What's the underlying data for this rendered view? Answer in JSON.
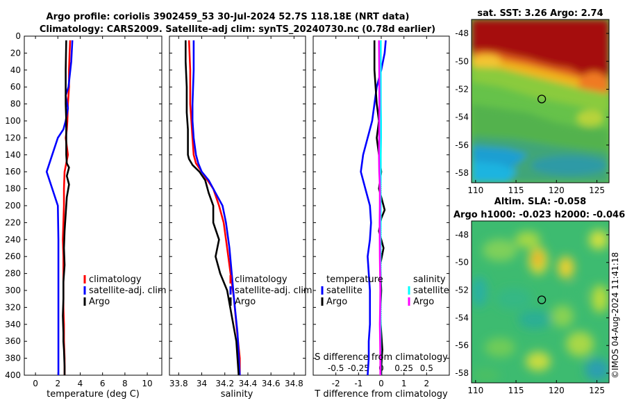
{
  "title_line1": "Argo profile: coriolis 3902459_53 30-Jul-2024 52.7S 118.18E (NRT data)",
  "title_line2": "Climatology: CARS2009. Satellite-adj clim: synTS_20240730.nc (0.78d earlier)",
  "credit": "©IMOS 04-Aug-2024 11:41:18",
  "colors": {
    "climatology": "#ff0000",
    "satellite_clim": "#0000ff",
    "argo": "#000000",
    "sal_sat": "#00ffff",
    "sal_argo": "#ff00ff"
  },
  "chart_data": [
    {
      "type": "line",
      "id": "temperature",
      "xlabel": "temperature (deg C)",
      "xlim": [
        -1,
        11.3
      ],
      "ylim": [
        0,
        400
      ],
      "y_reversed": true,
      "xticks": [
        0,
        2,
        4,
        6,
        8,
        10
      ],
      "yticks": [
        0,
        20,
        40,
        60,
        80,
        100,
        120,
        140,
        160,
        180,
        200,
        220,
        240,
        260,
        280,
        300,
        320,
        340,
        360,
        380,
        400
      ],
      "legend": [
        "climatology",
        "satellite-adj. clim",
        "Argo"
      ],
      "series": [
        {
          "name": "climatology",
          "color": "#ff0000",
          "x": [
            3.1,
            3.05,
            3.0,
            3.0,
            2.9,
            2.85,
            2.8,
            2.7,
            2.8,
            2.9,
            2.75,
            2.6,
            2.55,
            2.55,
            2.5,
            2.45,
            2.5,
            2.5,
            2.5,
            2.5,
            2.55,
            2.55,
            2.6,
            2.6
          ],
          "y": [
            5,
            20,
            40,
            60,
            80,
            100,
            110,
            120,
            130,
            140,
            150,
            160,
            180,
            200,
            220,
            240,
            260,
            280,
            300,
            320,
            340,
            360,
            380,
            400
          ]
        },
        {
          "name": "satellite-adj. clim",
          "color": "#0000ff",
          "x": [
            3.3,
            3.2,
            2.95,
            2.7,
            2.9,
            2.7,
            2.5,
            2.0,
            1.5,
            1.0,
            2.0,
            2.05,
            2.05,
            2.05,
            2.05,
            2.05,
            2.05
          ],
          "y": [
            5,
            30,
            60,
            70,
            85,
            100,
            110,
            120,
            140,
            160,
            200,
            240,
            280,
            320,
            350,
            380,
            400
          ]
        },
        {
          "name": "Argo",
          "color": "#000000",
          "x": [
            2.75,
            2.7,
            2.7,
            2.75,
            2.75,
            2.75,
            2.8,
            3.0,
            2.8,
            3.0,
            2.8,
            2.7,
            2.6,
            2.55,
            2.6,
            2.5,
            2.5,
            2.45,
            2.5,
            2.5,
            2.55,
            2.6,
            2.6
          ],
          "y": [
            5,
            40,
            80,
            100,
            120,
            140,
            150,
            155,
            165,
            175,
            190,
            210,
            230,
            250,
            270,
            290,
            310,
            330,
            350,
            360,
            370,
            390,
            400
          ]
        }
      ]
    },
    {
      "type": "line",
      "id": "salinity",
      "xlabel": "salinity",
      "xlim": [
        33.72,
        34.9
      ],
      "ylim": [
        0,
        400
      ],
      "y_reversed": true,
      "xticks": [
        33.8,
        34,
        34.2,
        34.4,
        34.6,
        34.8
      ],
      "xticklabels": [
        "33.8",
        "34",
        "34.2",
        "34.4",
        "34.6",
        "34.8"
      ],
      "legend": [
        "climatology",
        "satellite-adj. clim",
        "Argo"
      ],
      "series": [
        {
          "name": "climatology",
          "color": "#ff0000",
          "x": [
            33.89,
            33.9,
            33.9,
            33.91,
            33.92,
            33.93,
            33.95,
            34.0,
            34.05,
            34.1,
            34.15,
            34.19,
            34.22,
            34.25,
            34.28,
            34.3,
            34.33,
            34.33
          ],
          "y": [
            5,
            40,
            80,
            100,
            120,
            140,
            150,
            160,
            170,
            180,
            200,
            220,
            250,
            280,
            310,
            340,
            380,
            400
          ]
        },
        {
          "name": "satellite-adj. clim",
          "color": "#0000ff",
          "x": [
            33.93,
            33.93,
            33.92,
            33.92,
            33.93,
            33.95,
            33.97,
            34.0,
            34.06,
            34.12,
            34.18,
            34.21,
            34.24,
            34.26,
            34.28,
            34.31,
            34.33
          ],
          "y": [
            5,
            40,
            80,
            100,
            120,
            140,
            150,
            160,
            170,
            185,
            200,
            220,
            250,
            280,
            310,
            350,
            400
          ]
        },
        {
          "name": "Argo",
          "color": "#000000",
          "x": [
            33.86,
            33.86,
            33.87,
            33.87,
            33.88,
            33.88,
            33.88,
            33.89,
            33.92,
            33.98,
            34.03,
            34.06,
            34.1,
            34.1,
            34.15,
            34.12,
            34.16,
            34.22,
            34.26,
            34.3,
            34.31,
            34.32
          ],
          "y": [
            5,
            30,
            60,
            90,
            110,
            130,
            140,
            145,
            152,
            160,
            170,
            185,
            200,
            220,
            240,
            260,
            280,
            300,
            330,
            360,
            380,
            400
          ]
        }
      ]
    },
    {
      "type": "line",
      "id": "difference",
      "xlabel": "T difference from climatology",
      "xlabel_top": "S difference from climatology",
      "xlim": [
        -3,
        3
      ],
      "ylim": [
        0,
        400
      ],
      "y_reversed": true,
      "xticks": [
        -2,
        -1,
        0,
        1,
        2
      ],
      "xticks_top": [
        -0.5,
        -0.25,
        0,
        0.25,
        0.5
      ],
      "xticklabels_top": [
        "-0.5",
        "-0.25",
        "0",
        "0.25",
        "0.5"
      ],
      "legend_temperature": {
        "heading": "temperature",
        "items": [
          "satellite",
          "Argo"
        ]
      },
      "legend_salinity": {
        "heading": "salinity",
        "items": [
          "satellite",
          "Argo"
        ]
      },
      "series": [
        {
          "name": "temperature satellite",
          "color": "#0000ff",
          "x": [
            0.2,
            0.15,
            0.0,
            -0.2,
            -0.3,
            -0.4,
            -0.6,
            -0.8,
            -0.9,
            -0.7,
            -0.5,
            -0.45,
            -0.5,
            -0.6,
            -0.55,
            -0.5,
            -0.5,
            -0.5,
            -0.55,
            -0.55,
            -0.6
          ],
          "y": [
            5,
            20,
            40,
            60,
            80,
            100,
            120,
            140,
            160,
            180,
            200,
            220,
            240,
            260,
            280,
            300,
            320,
            340,
            360,
            380,
            400
          ]
        },
        {
          "name": "temperature Argo",
          "color": "#000000",
          "x": [
            -0.3,
            -0.3,
            -0.2,
            -0.1,
            -0.2,
            -0.1,
            0.0,
            -0.1,
            0.1,
            0.15,
            0.0,
            -0.1,
            0.1,
            -0.05,
            0.0,
            -0.05,
            0.0,
            0.05,
            0.0,
            0.0
          ],
          "y": [
            5,
            40,
            80,
            100,
            120,
            140,
            160,
            180,
            200,
            205,
            215,
            230,
            250,
            270,
            300,
            330,
            350,
            370,
            390,
            400
          ]
        },
        {
          "name": "salinity satellite",
          "color": "#00ffff",
          "x": [
            -0.02,
            -0.02,
            -0.02,
            -0.01,
            -0.01,
            -0.02,
            -0.02,
            -0.03,
            -0.02,
            -0.03,
            -0.03,
            -0.03,
            -0.03,
            -0.03,
            -0.03
          ],
          "y": [
            5,
            40,
            80,
            100,
            120,
            140,
            160,
            180,
            200,
            240,
            280,
            320,
            360,
            380,
            400
          ]
        },
        {
          "name": "salinity Argo",
          "color": "#ff00ff",
          "x": [
            -0.1,
            -0.09,
            -0.08,
            -0.09,
            -0.09,
            -0.1,
            -0.09,
            -0.07,
            -0.06,
            -0.06,
            -0.07,
            -0.06,
            -0.04,
            -0.05,
            -0.06,
            -0.05,
            -0.04,
            -0.04
          ],
          "y": [
            5,
            40,
            80,
            100,
            120,
            140,
            160,
            170,
            180,
            200,
            220,
            260,
            300,
            320,
            340,
            360,
            380,
            400
          ]
        }
      ]
    },
    {
      "type": "heatmap",
      "id": "sst_map",
      "title": "sat. SST: 3.26 Argo: 2.74",
      "xlim": [
        109.5,
        126.5
      ],
      "ylim": [
        -58.7,
        -47
      ],
      "xticks": [
        110,
        115,
        120,
        125
      ],
      "yticks": [
        -48,
        -50,
        -52,
        -54,
        -56,
        -58
      ],
      "marker": {
        "lon": 118.18,
        "lat": -52.7
      }
    },
    {
      "type": "heatmap",
      "id": "sla_map",
      "title_line1": "Altim. SLA: -0.058",
      "title_line2": "Argo h1000: -0.023 h2000: -0.046",
      "xlim": [
        109.5,
        126.5
      ],
      "ylim": [
        -58.7,
        -47
      ],
      "xticks": [
        110,
        115,
        120,
        125
      ],
      "yticks": [
        -48,
        -50,
        -52,
        -54,
        -56,
        -58
      ],
      "marker": {
        "lon": 118.18,
        "lat": -52.7
      }
    }
  ]
}
